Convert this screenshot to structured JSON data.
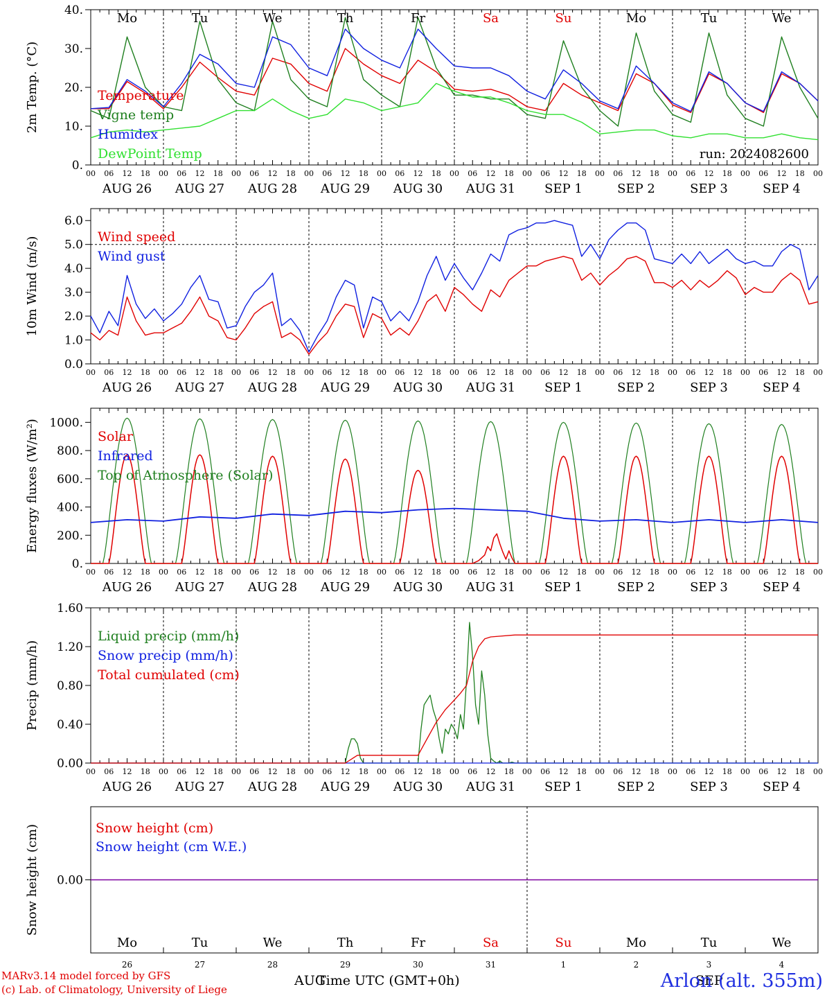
{
  "footer": {
    "credit_line1": "MARv3.14 model forced by GFS",
    "credit_line2": "(c) Lab. of Climatology, University of Liege",
    "xaxis_title": "Time UTC (GMT+0h)",
    "station": "Arlon (alt. 355m)",
    "stray_aug": "AUG",
    "stray_sep": "SEP"
  },
  "colors": {
    "red": "#e00000",
    "blue": "#1020e0",
    "darkgreen": "#1f7f1f",
    "lightgreen": "#30e030",
    "purple": "#7f00a0"
  },
  "day_names": [
    "Mo",
    "Tu",
    "We",
    "Th",
    "Fr",
    "Sa",
    "Su",
    "Mo",
    "Tu",
    "We"
  ],
  "weekend_flags": [
    false,
    false,
    false,
    false,
    false,
    true,
    true,
    false,
    false,
    false
  ],
  "date_labels": [
    "AUG 26",
    "AUG 27",
    "AUG 28",
    "AUG 29",
    "AUG 30",
    "AUG 31",
    "SEP  1",
    "SEP  2",
    "SEP  3",
    "SEP  4"
  ],
  "day_numbers": [
    "26",
    "27",
    "28",
    "29",
    "30",
    "31",
    "1",
    "2",
    "3",
    "4"
  ],
  "hour_ticks": [
    "00",
    "06",
    "12",
    "18"
  ],
  "chart_data": [
    {
      "type": "line",
      "title": "",
      "ylabel": "2m Temp. (°C)",
      "ylim": [
        0,
        40
      ],
      "yticks": [
        "0.",
        "10.",
        "20.",
        "30.",
        "40."
      ],
      "annotation": "run: 2024082600",
      "x_unit": "hours from 2024-08-26 00 UTC",
      "series": [
        {
          "name": "Temperature",
          "color": "#e00000",
          "x": [
            0,
            6,
            12,
            18,
            24,
            30,
            36,
            42,
            48,
            54,
            60,
            66,
            72,
            78,
            84,
            90,
            96,
            102,
            108,
            114,
            120,
            126,
            132,
            138,
            144,
            150,
            156,
            162,
            168,
            174,
            180,
            186,
            192,
            198,
            204,
            210,
            216,
            222,
            228,
            234,
            240
          ],
          "y": [
            14.5,
            14.5,
            21.5,
            18.5,
            14.5,
            20,
            26.5,
            22.5,
            19,
            18,
            27.5,
            26,
            21,
            19,
            30,
            26,
            23,
            21,
            27,
            24,
            19.5,
            19,
            19.5,
            18,
            15,
            14,
            21,
            18,
            16,
            14,
            23.5,
            21,
            15.5,
            13.5,
            23.5,
            21,
            16,
            13.5,
            23.5,
            21,
            16.5
          ]
        },
        {
          "name": "Vigne temp",
          "color": "#1f7f1f",
          "x": [
            0,
            6,
            12,
            18,
            24,
            30,
            36,
            42,
            48,
            54,
            60,
            66,
            72,
            78,
            84,
            90,
            96,
            102,
            108,
            114,
            120,
            126,
            132,
            138,
            144,
            150,
            156,
            162,
            168,
            174,
            180,
            186,
            192,
            198,
            204,
            210,
            216,
            222,
            228,
            234,
            240
          ],
          "y": [
            14,
            12,
            33,
            20,
            15,
            14,
            37,
            22,
            16,
            14,
            37,
            22,
            17,
            15,
            38,
            22,
            18,
            15,
            38,
            25,
            18,
            18,
            17,
            17,
            13,
            12,
            32,
            20,
            14,
            10,
            34,
            19,
            13,
            11,
            34,
            18,
            12,
            10,
            33,
            20,
            12
          ]
        },
        {
          "name": "Humidex",
          "color": "#1020e0",
          "x": [
            0,
            6,
            12,
            18,
            24,
            30,
            36,
            42,
            48,
            54,
            60,
            66,
            72,
            78,
            84,
            90,
            96,
            102,
            108,
            114,
            120,
            126,
            132,
            138,
            144,
            150,
            156,
            162,
            168,
            174,
            180,
            186,
            192,
            198,
            204,
            210,
            216,
            222,
            228,
            234,
            240
          ],
          "y": [
            14.5,
            14.8,
            22,
            19,
            15,
            21,
            28.5,
            26,
            21,
            20,
            33,
            31,
            25,
            23,
            35,
            30,
            27,
            25,
            35,
            30,
            25.5,
            25,
            25,
            23,
            19,
            17,
            24.5,
            21,
            16.5,
            14.5,
            25.5,
            21,
            16,
            13.8,
            24,
            21,
            16,
            13.8,
            24,
            21,
            16.5
          ]
        },
        {
          "name": "DewPoint Temp",
          "color": "#30e030",
          "x": [
            0,
            6,
            12,
            18,
            24,
            30,
            36,
            42,
            48,
            54,
            60,
            66,
            72,
            78,
            84,
            90,
            96,
            102,
            108,
            114,
            120,
            126,
            132,
            138,
            144,
            150,
            156,
            162,
            168,
            174,
            180,
            186,
            192,
            198,
            204,
            210,
            216,
            222,
            228,
            234,
            240
          ],
          "y": [
            7,
            8.5,
            9,
            8.5,
            9,
            9.5,
            10,
            12,
            14,
            14,
            17,
            14,
            12,
            13,
            17,
            16,
            14,
            15,
            16,
            21,
            19,
            17.5,
            17.5,
            16,
            14,
            13,
            13,
            11,
            8,
            8.5,
            9,
            9,
            7.5,
            7,
            8,
            8,
            7,
            7,
            8,
            7,
            6.5
          ]
        }
      ]
    },
    {
      "type": "line",
      "title": "",
      "ylabel": "10m Wind (m/s)",
      "ylim": [
        0,
        6.5
      ],
      "yticks": [
        "0.0",
        "1.0",
        "2.0",
        "3.0",
        "4.0",
        "5.0",
        "6.0"
      ],
      "reference_line": 5.0,
      "x_unit": "hours from 2024-08-26 00 UTC",
      "series": [
        {
          "name": "Wind speed",
          "color": "#e00000",
          "x": [
            0,
            3,
            6,
            9,
            12,
            15,
            18,
            21,
            24,
            27,
            30,
            33,
            36,
            39,
            42,
            45,
            48,
            51,
            54,
            57,
            60,
            63,
            66,
            69,
            72,
            75,
            78,
            81,
            84,
            87,
            90,
            93,
            96,
            99,
            102,
            105,
            108,
            111,
            114,
            117,
            120,
            123,
            126,
            129,
            132,
            135,
            138,
            141,
            144,
            147,
            150,
            153,
            156,
            159,
            162,
            165,
            168,
            171,
            174,
            177,
            180,
            183,
            186,
            189,
            192,
            195,
            198,
            201,
            204,
            207,
            210,
            213,
            216,
            219,
            222,
            225,
            228,
            231,
            234,
            237,
            240
          ],
          "y": [
            1.3,
            1.0,
            1.4,
            1.2,
            2.8,
            1.8,
            1.2,
            1.3,
            1.3,
            1.5,
            1.7,
            2.2,
            2.8,
            2.0,
            1.8,
            1.1,
            1.0,
            1.5,
            2.1,
            2.4,
            2.6,
            1.1,
            1.3,
            1.0,
            0.4,
            0.9,
            1.3,
            2.0,
            2.5,
            2.4,
            1.1,
            2.1,
            1.9,
            1.2,
            1.5,
            1.2,
            1.8,
            2.6,
            2.9,
            2.2,
            3.2,
            2.9,
            2.5,
            2.2,
            3.1,
            2.8,
            3.5,
            3.8,
            4.1,
            4.1,
            4.3,
            4.4,
            4.5,
            4.4,
            3.5,
            3.8,
            3.3,
            3.7,
            4.0,
            4.4,
            4.5,
            4.3,
            3.4,
            3.4,
            3.2,
            3.5,
            3.1,
            3.5,
            3.2,
            3.5,
            3.9,
            3.6,
            2.9,
            3.2,
            3.0,
            3.0,
            3.5,
            3.8,
            3.5,
            2.5,
            2.6
          ]
        },
        {
          "name": "Wind gust",
          "color": "#1020e0",
          "x": [
            0,
            3,
            6,
            9,
            12,
            15,
            18,
            21,
            24,
            27,
            30,
            33,
            36,
            39,
            42,
            45,
            48,
            51,
            54,
            57,
            60,
            63,
            66,
            69,
            72,
            75,
            78,
            81,
            84,
            87,
            90,
            93,
            96,
            99,
            102,
            105,
            108,
            111,
            114,
            117,
            120,
            123,
            126,
            129,
            132,
            135,
            138,
            141,
            144,
            147,
            150,
            153,
            156,
            159,
            162,
            165,
            168,
            171,
            174,
            177,
            180,
            183,
            186,
            189,
            192,
            195,
            198,
            201,
            204,
            207,
            210,
            213,
            216,
            219,
            222,
            225,
            228,
            231,
            234,
            237,
            240
          ],
          "y": [
            2.0,
            1.3,
            2.2,
            1.6,
            3.7,
            2.5,
            1.9,
            2.3,
            1.8,
            2.1,
            2.5,
            3.2,
            3.7,
            2.7,
            2.6,
            1.5,
            1.6,
            2.4,
            3.0,
            3.3,
            3.8,
            1.6,
            1.9,
            1.4,
            0.5,
            1.2,
            1.8,
            2.8,
            3.5,
            3.3,
            1.5,
            2.8,
            2.6,
            1.8,
            2.2,
            1.8,
            2.6,
            3.7,
            4.5,
            3.5,
            4.2,
            3.6,
            3.1,
            3.8,
            4.6,
            4.3,
            5.4,
            5.6,
            5.7,
            5.9,
            5.9,
            6.0,
            5.9,
            5.8,
            4.5,
            5.0,
            4.4,
            5.2,
            5.6,
            5.9,
            5.9,
            5.6,
            4.4,
            4.3,
            4.2,
            4.6,
            4.2,
            4.7,
            4.2,
            4.5,
            4.8,
            4.4,
            4.2,
            4.3,
            4.1,
            4.1,
            4.7,
            5.0,
            4.8,
            3.1,
            3.7
          ]
        }
      ]
    },
    {
      "type": "line",
      "title": "",
      "ylabel": "Energy fluxes (W/m²)",
      "ylim": [
        0,
        1100
      ],
      "yticks": [
        "0.",
        "200.",
        "400.",
        "600.",
        "800.",
        "1000."
      ],
      "x_unit": "hours from 2024-08-26 00 UTC",
      "series": [
        {
          "name": "Solar",
          "color": "#e00000",
          "daily_peaks": [
            770,
            770,
            760,
            740,
            660,
            210,
            760,
            760,
            760,
            760
          ]
        },
        {
          "name": "Infrared",
          "color": "#1020e0",
          "x": [
            0,
            12,
            24,
            36,
            48,
            60,
            72,
            84,
            96,
            108,
            120,
            132,
            144,
            156,
            168,
            180,
            192,
            204,
            216,
            228,
            240
          ],
          "y": [
            290,
            310,
            300,
            330,
            320,
            350,
            340,
            370,
            360,
            380,
            390,
            380,
            370,
            320,
            300,
            310,
            290,
            310,
            290,
            310,
            290
          ]
        },
        {
          "name": "Top of Atmosphere (Solar)",
          "color": "#1f7f1f",
          "daily_peaks": [
            1030,
            1025,
            1020,
            1015,
            1010,
            1005,
            1000,
            995,
            990,
            985
          ]
        }
      ]
    },
    {
      "type": "line",
      "title": "",
      "ylabel": "Precip (mm/h)",
      "ylim": [
        0,
        1.6
      ],
      "yticks": [
        "0.00",
        "0.40",
        "0.80",
        "1.20",
        "1.60"
      ],
      "x_unit": "hours from 2024-08-26 00 UTC",
      "series": [
        {
          "name": "Liquid precip (mm/h)",
          "color": "#1f7f1f",
          "x": [
            0,
            84,
            85,
            86,
            87,
            88,
            89,
            90,
            108,
            109,
            110,
            111,
            112,
            113,
            114,
            115,
            116,
            117,
            118,
            119,
            120,
            121,
            122,
            123,
            124,
            125,
            126,
            127,
            128,
            129,
            130,
            131,
            132,
            133,
            134,
            135,
            136,
            137,
            138,
            139,
            140,
            240
          ],
          "y": [
            0,
            0,
            0.15,
            0.25,
            0.25,
            0.2,
            0.05,
            0,
            0,
            0.35,
            0.6,
            0.65,
            0.7,
            0.55,
            0.45,
            0.25,
            0.1,
            0.35,
            0.3,
            0.4,
            0.35,
            0.25,
            0.5,
            0.35,
            0.85,
            1.45,
            1.1,
            0.6,
            0.4,
            0.95,
            0.7,
            0.3,
            0.05,
            0.02,
            0,
            0.02,
            0,
            0,
            0,
            0.01,
            0,
            0
          ]
        },
        {
          "name": "Snow precip (mm/h)",
          "color": "#1020e0",
          "x": [
            0,
            240
          ],
          "y": [
            0,
            0
          ]
        },
        {
          "name": "Total cumulated (cm)",
          "color": "#e00000",
          "x": [
            0,
            84,
            86,
            88,
            108,
            111,
            114,
            117,
            120,
            122,
            124,
            126,
            128,
            130,
            132,
            140,
            240
          ],
          "y": [
            0,
            0,
            0.04,
            0.08,
            0.08,
            0.25,
            0.42,
            0.55,
            0.65,
            0.72,
            0.8,
            1.05,
            1.2,
            1.28,
            1.3,
            1.32,
            1.32
          ]
        }
      ]
    },
    {
      "type": "line",
      "title": "",
      "ylabel": "Snow height (cm)",
      "ylim": [
        -1,
        1
      ],
      "yticks": [
        "0.00"
      ],
      "series": [
        {
          "name": "Snow height (cm)",
          "color": "#e00000",
          "x": [
            0,
            240
          ],
          "y": [
            0,
            0
          ]
        },
        {
          "name": "Snow height (cm W.E.)",
          "color": "#1020e0",
          "x": [
            0,
            240
          ],
          "y": [
            0,
            0
          ]
        }
      ]
    }
  ]
}
